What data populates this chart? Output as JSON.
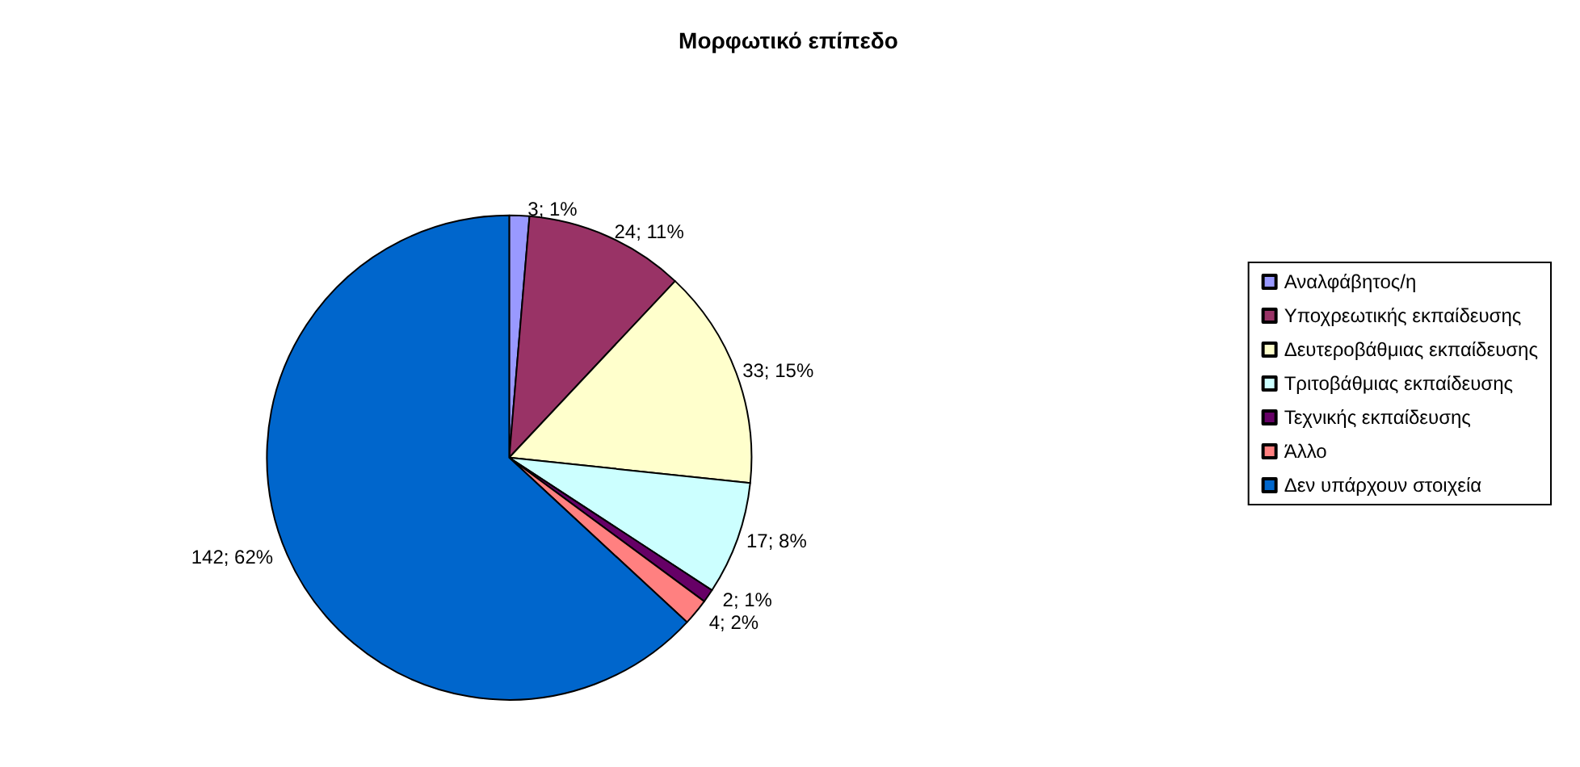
{
  "chart_data": {
    "type": "pie",
    "title": "Μορφωτικό επίπεδο",
    "categories": [
      "Αναλφάβητος/η",
      "Υποχρεωτικής εκπαίδευσης",
      "Δευτεροβάθμιας εκπαίδευσης",
      "Τριτοβάθμιας εκπαίδευσης",
      "Τεχνικής εκπαίδευσης",
      "Άλλο",
      "Δεν υπάρχουν στοιχεία"
    ],
    "values": [
      3,
      24,
      33,
      17,
      2,
      4,
      142
    ],
    "colors": [
      "#9999ff",
      "#993366",
      "#ffffcc",
      "#ccffff",
      "#660066",
      "#ff8080",
      "#0066cc"
    ],
    "value_labels": [
      "3; 1%",
      "24; 11%",
      "33; 15%",
      "17; 8%",
      "2; 1%",
      "4; 2%",
      "142; 62%"
    ],
    "legend": "right"
  }
}
